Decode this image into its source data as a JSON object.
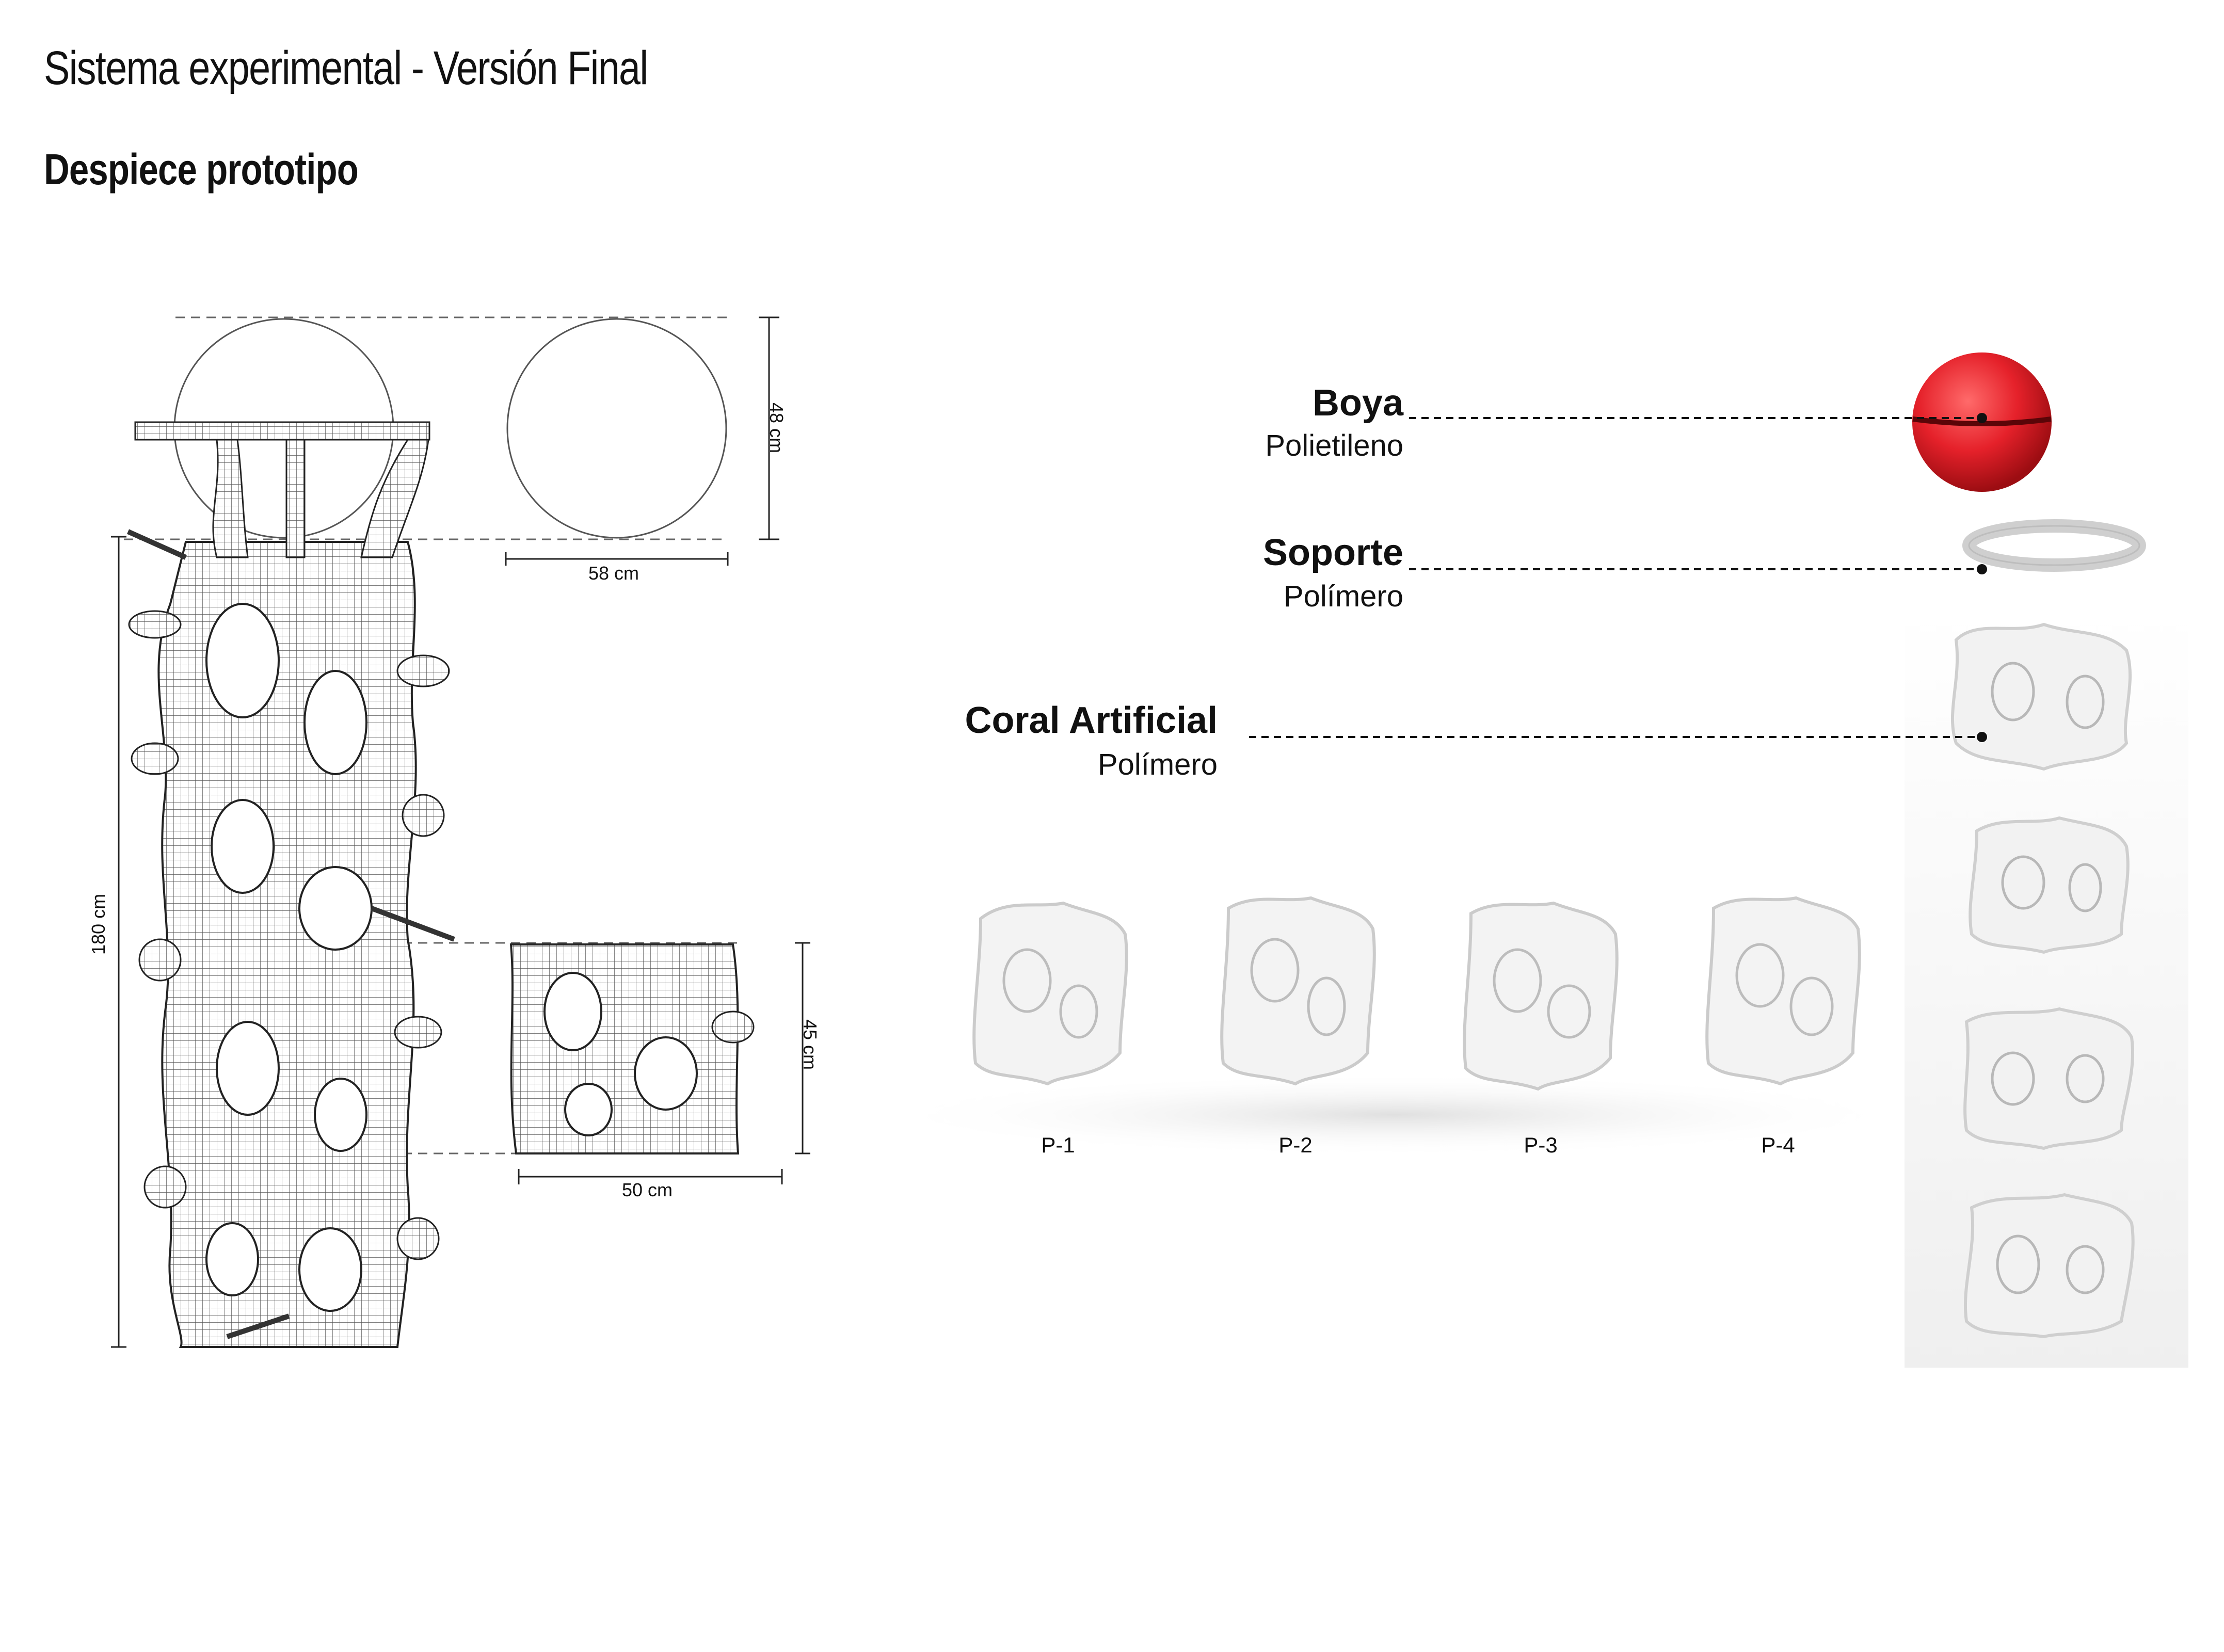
{
  "header": {
    "title": "Sistema experimental - Versión Final",
    "subtitle": "Despiece prototipo"
  },
  "dimensions": {
    "buoy_height": "48 cm",
    "buoy_width": "58 cm",
    "total_height": "180 cm",
    "module_height": "45 cm",
    "module_width": "50 cm"
  },
  "components": [
    {
      "name": "Boya",
      "material": "Polietileno"
    },
    {
      "name": "Soporte",
      "material": "Polímero"
    },
    {
      "name": "Coral Artificial",
      "material": "Polímero"
    }
  ],
  "variants": [
    "P-1",
    "P-2",
    "P-3",
    "P-4"
  ],
  "colors": {
    "buoy": "#e5212a",
    "line": "#222222",
    "mesh": "#3a3a3a",
    "render": "#eeeeee"
  }
}
